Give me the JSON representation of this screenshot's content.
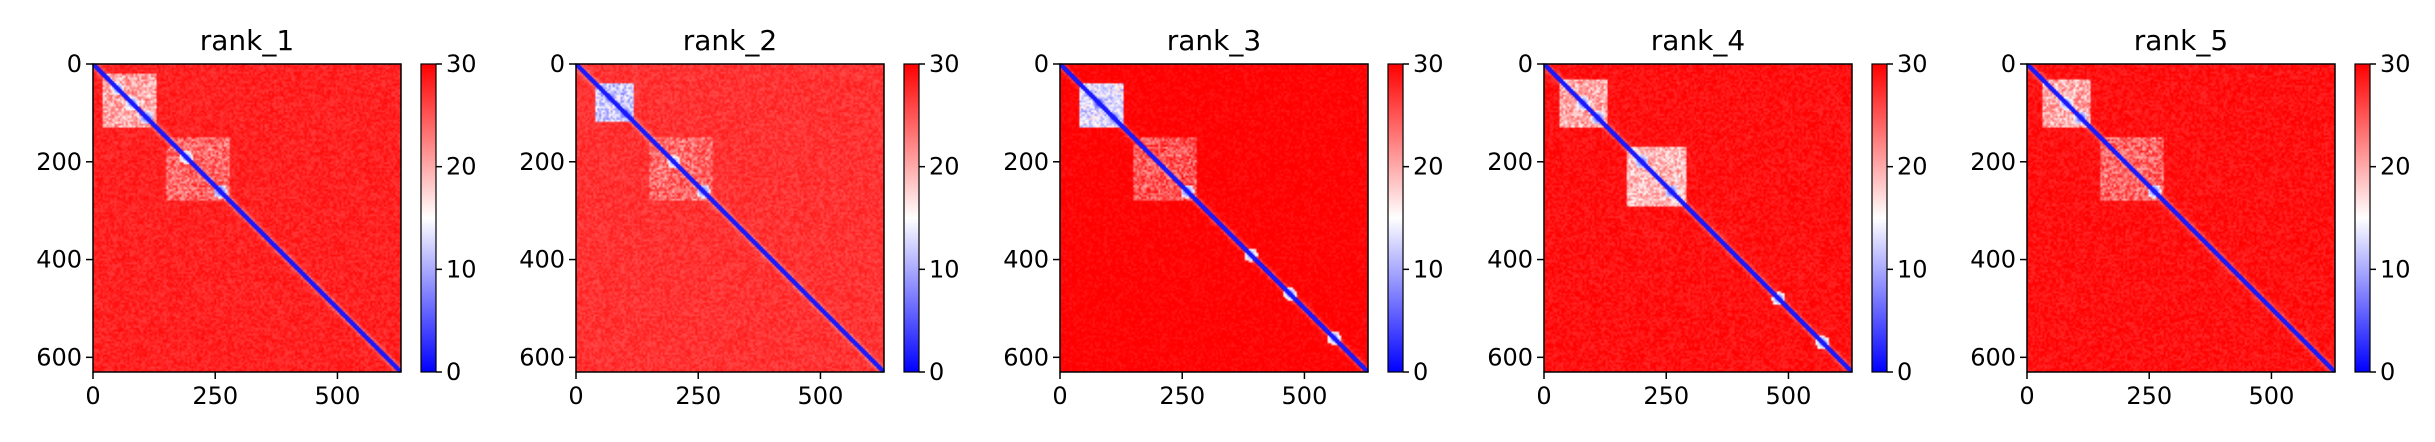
{
  "chart_data": [
    {
      "type": "heatmap",
      "title": "rank_1",
      "xlim": [
        0,
        630
      ],
      "ylim": [
        630,
        0
      ],
      "x_ticks": [
        0,
        250,
        500
      ],
      "y_ticks": [
        0,
        200,
        400,
        600
      ],
      "colorbar": {
        "min": 0,
        "max": 30,
        "ticks": [
          0,
          10,
          20,
          30
        ],
        "colormap": [
          "#0000ff",
          "#ffffff",
          "#ff0000"
        ]
      },
      "diagonal_value": 0,
      "background_value": 28,
      "features": [
        {
          "kind": "block",
          "from": 20,
          "to": 130,
          "value": 16
        },
        {
          "kind": "block",
          "from": 150,
          "to": 280,
          "value": 20
        },
        {
          "kind": "spot",
          "at": 50,
          "value": 6
        },
        {
          "kind": "spot",
          "at": 80,
          "value": 5
        },
        {
          "kind": "spot",
          "at": 110,
          "value": 3
        },
        {
          "kind": "spot",
          "at": 190,
          "value": 6
        },
        {
          "kind": "spot",
          "at": 260,
          "value": 3
        }
      ]
    },
    {
      "type": "heatmap",
      "title": "rank_2",
      "xlim": [
        0,
        630
      ],
      "ylim": [
        630,
        0
      ],
      "x_ticks": [
        0,
        250,
        500
      ],
      "y_ticks": [
        0,
        200,
        400,
        600
      ],
      "colorbar": {
        "min": 0,
        "max": 30,
        "ticks": [
          0,
          10,
          20,
          30
        ],
        "colormap": [
          "#0000ff",
          "#ffffff",
          "#ff0000"
        ]
      },
      "diagonal_value": 0,
      "background_value": 27,
      "features": [
        {
          "kind": "block",
          "from": 40,
          "to": 120,
          "value": 8
        },
        {
          "kind": "block",
          "from": 150,
          "to": 280,
          "value": 20
        },
        {
          "kind": "spot",
          "at": 70,
          "value": 3
        },
        {
          "kind": "spot",
          "at": 100,
          "value": 3
        },
        {
          "kind": "spot",
          "at": 200,
          "value": 7
        },
        {
          "kind": "spot",
          "at": 260,
          "value": 4
        }
      ]
    },
    {
      "type": "heatmap",
      "title": "rank_3",
      "xlim": [
        0,
        630
      ],
      "ylim": [
        630,
        0
      ],
      "x_ticks": [
        0,
        250,
        500
      ],
      "y_ticks": [
        0,
        200,
        400,
        600
      ],
      "colorbar": {
        "min": 0,
        "max": 30,
        "ticks": [
          0,
          10,
          20,
          30
        ],
        "colormap": [
          "#0000ff",
          "#ffffff",
          "#ff0000"
        ]
      },
      "diagonal_value": 0,
      "background_value": 30,
      "features": [
        {
          "kind": "block",
          "from": 40,
          "to": 130,
          "value": 9
        },
        {
          "kind": "block",
          "from": 150,
          "to": 280,
          "value": 21
        },
        {
          "kind": "spot",
          "at": 80,
          "value": 2
        },
        {
          "kind": "spot",
          "at": 110,
          "value": 3
        },
        {
          "kind": "spot",
          "at": 260,
          "value": 4
        },
        {
          "kind": "spot",
          "at": 390,
          "value": 6
        },
        {
          "kind": "spot",
          "at": 470,
          "value": 6
        },
        {
          "kind": "spot",
          "at": 560,
          "value": 6
        }
      ]
    },
    {
      "type": "heatmap",
      "title": "rank_4",
      "xlim": [
        0,
        630
      ],
      "ylim": [
        630,
        0
      ],
      "x_ticks": [
        0,
        250,
        500
      ],
      "y_ticks": [
        0,
        200,
        400,
        600
      ],
      "colorbar": {
        "min": 0,
        "max": 30,
        "ticks": [
          0,
          10,
          20,
          30
        ],
        "colormap": [
          "#0000ff",
          "#ffffff",
          "#ff0000"
        ]
      },
      "diagonal_value": 0,
      "background_value": 29,
      "features": [
        {
          "kind": "block",
          "from": 30,
          "to": 130,
          "value": 16
        },
        {
          "kind": "block",
          "from": 170,
          "to": 290,
          "value": 15
        },
        {
          "kind": "spot",
          "at": 80,
          "value": 4
        },
        {
          "kind": "spot",
          "at": 110,
          "value": 3
        },
        {
          "kind": "spot",
          "at": 200,
          "value": 3
        },
        {
          "kind": "spot",
          "at": 260,
          "value": 3
        },
        {
          "kind": "spot",
          "at": 480,
          "value": 5
        },
        {
          "kind": "spot",
          "at": 570,
          "value": 5
        }
      ]
    },
    {
      "type": "heatmap",
      "title": "rank_5",
      "xlim": [
        0,
        630
      ],
      "ylim": [
        630,
        0
      ],
      "x_ticks": [
        0,
        250,
        500
      ],
      "y_ticks": [
        0,
        200,
        400,
        600
      ],
      "colorbar": {
        "min": 0,
        "max": 30,
        "ticks": [
          0,
          10,
          20,
          30
        ],
        "colormap": [
          "#0000ff",
          "#ffffff",
          "#ff0000"
        ]
      },
      "diagonal_value": 0,
      "background_value": 29,
      "features": [
        {
          "kind": "block",
          "from": 30,
          "to": 130,
          "value": 16
        },
        {
          "kind": "block",
          "from": 150,
          "to": 280,
          "value": 20
        },
        {
          "kind": "spot",
          "at": 80,
          "value": 5
        },
        {
          "kind": "spot",
          "at": 110,
          "value": 3
        },
        {
          "kind": "spot",
          "at": 260,
          "value": 4
        }
      ]
    }
  ]
}
